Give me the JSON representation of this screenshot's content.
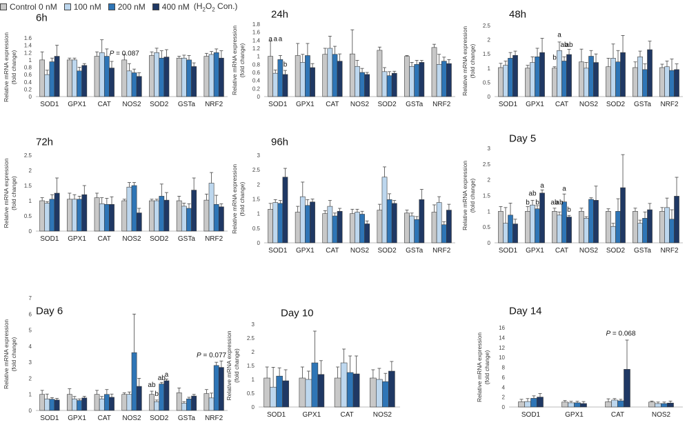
{
  "legend": {
    "items": [
      {
        "label": "Control 0 nM",
        "color": "#c8c8c8"
      },
      {
        "label": "100 nM",
        "color": "#bdd7ee"
      },
      {
        "label": "200 nM",
        "color": "#2e75b6"
      },
      {
        "label": "400 nM",
        "color": "#1f3864"
      }
    ],
    "note_prefix": "(H",
    "note_sub1": "2",
    "note_mid": "O",
    "note_sub2": "2",
    "note_suffix": " Con.)"
  },
  "chart_data": [
    {
      "type": "bar",
      "title": "6h",
      "ylabel": "Relative mRNA expression (fold change)",
      "ylim": [
        0,
        1.6
      ],
      "yticks": [
        0,
        0.2,
        0.4,
        0.6,
        0.8,
        1,
        1.2,
        1.4,
        1.6
      ],
      "categories": [
        "SOD1",
        "GPX1",
        "CAT",
        "NOS2",
        "SOD2",
        "GSTa",
        "NRF2"
      ],
      "series": [
        {
          "name": "Control 0 nM",
          "values": [
            1,
            1,
            1.1,
            1,
            1.12,
            1.05,
            1.1
          ]
        },
        {
          "name": "100 nM",
          "values": [
            0.6,
            1,
            1.2,
            0.7,
            1.2,
            1.05,
            1.15
          ]
        },
        {
          "name": "200 nM",
          "values": [
            0.95,
            0.7,
            1.1,
            0.65,
            1.05,
            1,
            1.2
          ]
        },
        {
          "name": "400 nM",
          "values": [
            1.1,
            0.85,
            0.78,
            0.55,
            1.08,
            0.82,
            1.05
          ]
        }
      ],
      "errors": [
        [
          0.22,
          0.05,
          0.12,
          0.15,
          0.1,
          0.05,
          0.08
        ],
        [
          0.12,
          0.05,
          0.35,
          0.2,
          0.12,
          0.08,
          0.08
        ],
        [
          0.1,
          0.1,
          0.2,
          0.1,
          0.2,
          0.12,
          0.1
        ],
        [
          0.3,
          0.05,
          0.18,
          0.1,
          0.2,
          0.1,
          0.2
        ]
      ],
      "annotations": [
        {
          "text": "P = 0.087",
          "category": "NOS2",
          "series": 0,
          "value": 1.12,
          "italic_prefix": "P"
        }
      ]
    },
    {
      "type": "bar",
      "title": "24h",
      "ylabel": "Relative mRNA expression (fold change)",
      "ylim": [
        0,
        1.8
      ],
      "yticks": [
        0,
        0.2,
        0.4,
        0.6,
        0.8,
        1,
        1.2,
        1.4,
        1.6,
        1.8
      ],
      "categories": [
        "SOD1",
        "GPX1",
        "CAT",
        "NOS2",
        "SOD2",
        "GSTa",
        "NRF2"
      ],
      "series": [
        {
          "name": "Control 0 nM",
          "values": [
            1,
            1.02,
            1.05,
            1.06,
            1.15,
            1,
            1.22
          ]
        },
        {
          "name": "100 nM",
          "values": [
            0.58,
            0.85,
            1.2,
            0.75,
            0.62,
            0.75,
            0.8
          ]
        },
        {
          "name": "200 nM",
          "values": [
            0.92,
            1.02,
            1.05,
            0.6,
            0.52,
            0.8,
            0.88
          ]
        },
        {
          "name": "400 nM",
          "values": [
            0.55,
            0.72,
            0.88,
            0.55,
            0.58,
            0.85,
            0.82
          ]
        }
      ],
      "errors": [
        [
          0.38,
          0.3,
          0.15,
          0.6,
          0.08,
          0.02,
          0.08
        ],
        [
          0.08,
          0.2,
          0.3,
          0.15,
          0.1,
          0.1,
          0.25
        ],
        [
          0.1,
          0.3,
          0.2,
          0.1,
          0.1,
          0.1,
          0.1
        ],
        [
          0.1,
          0.1,
          0.18,
          0.05,
          0.05,
          0.05,
          0.1
        ]
      ],
      "annotations": [
        {
          "text": "a",
          "category": "SOD1",
          "series": 0,
          "value": 1.38
        },
        {
          "text": "a",
          "category": "SOD1",
          "series": 1,
          "value": 1.38
        },
        {
          "text": "a",
          "category": "SOD1",
          "series": 2,
          "value": 1.38
        },
        {
          "text": "b",
          "category": "SOD1",
          "series": 3,
          "value": 0.75
        }
      ]
    },
    {
      "type": "bar",
      "title": "48h",
      "ylabel": "Relative mRNA expression (fold change)",
      "ylim": [
        0,
        2.5
      ],
      "yticks": [
        0,
        0.5,
        1,
        1.5,
        2,
        2.5
      ],
      "categories": [
        "SOD1",
        "GPX1",
        "CAT",
        "NOS2",
        "SOD2",
        "GSTa",
        "NRF2"
      ],
      "series": [
        {
          "name": "Control 0 nM",
          "values": [
            1.02,
            1,
            1,
            1.22,
            1.05,
            1.02,
            1.02
          ]
        },
        {
          "name": "100 nM",
          "values": [
            1.1,
            1.2,
            1.62,
            1,
            1.35,
            1.4,
            1.05
          ]
        },
        {
          "name": "200 nM",
          "values": [
            1.35,
            1.4,
            1.25,
            1.42,
            1.22,
            0.95,
            0.92
          ]
        },
        {
          "name": "400 nM",
          "values": [
            1.45,
            1.55,
            1.48,
            1.2,
            1.55,
            1.65,
            0.95
          ]
        }
      ],
      "errors": [
        [
          0.15,
          0.1,
          0.05,
          0.45,
          0.3,
          0.2,
          0.12
        ],
        [
          0.15,
          0.2,
          0.3,
          0.2,
          0.5,
          0.2,
          0.2
        ],
        [
          0.2,
          0.3,
          0.15,
          0.2,
          0.4,
          0.2,
          0.4
        ],
        [
          0.15,
          0.5,
          0.18,
          0.3,
          0.6,
          0.3,
          0.2
        ]
      ],
      "annotations": [
        {
          "text": "b",
          "category": "CAT",
          "series": 0,
          "value": 1.3
        },
        {
          "text": "a",
          "category": "CAT",
          "series": 1,
          "value": 2.1
        },
        {
          "text": "ab",
          "category": "CAT",
          "series": 2,
          "value": 1.75
        },
        {
          "text": "ab",
          "category": "CAT",
          "series": 3,
          "value": 1.75
        }
      ]
    },
    {
      "type": "bar",
      "title": "72h",
      "ylabel": "Relative mRNA expression (fold change)",
      "ylim": [
        0,
        2.5
      ],
      "yticks": [
        0,
        0.5,
        1,
        1.5,
        2,
        2.5
      ],
      "categories": [
        "SOD1",
        "GPX1",
        "CAT",
        "NOS2",
        "SOD2",
        "GSTa",
        "NRF2"
      ],
      "series": [
        {
          "name": "Control 0 nM",
          "values": [
            1,
            1.05,
            1.1,
            1,
            1,
            1,
            1.02
          ]
        },
        {
          "name": "100 nM",
          "values": [
            0.92,
            1.05,
            0.9,
            1.45,
            1,
            0.82,
            1.58
          ]
        },
        {
          "name": "200 nM",
          "values": [
            1.05,
            1.05,
            0.88,
            1.5,
            1.15,
            0.75,
            0.88
          ]
        },
        {
          "name": "400 nM",
          "values": [
            1.25,
            1.2,
            0.88,
            0.6,
            1.02,
            1.35,
            0.8
          ]
        }
      ],
      "errors": [
        [
          0.1,
          0.2,
          0.15,
          0.05,
          0.05,
          0.15,
          0.2
        ],
        [
          0.05,
          0.15,
          0.2,
          0.15,
          0.05,
          0.1,
          0.35
        ],
        [
          0.15,
          0.1,
          0.2,
          0.1,
          0.4,
          0.15,
          0.3
        ],
        [
          0.5,
          0.3,
          0.25,
          0.15,
          0.25,
          0.4,
          0.1
        ]
      ],
      "annotations": []
    },
    {
      "type": "bar",
      "title": "96h",
      "ylabel": "Relative mRNA expression (fold change)",
      "ylim": [
        0,
        3
      ],
      "yticks": [
        0,
        0.5,
        1,
        1.5,
        2,
        2.5,
        3
      ],
      "categories": [
        "SOD1",
        "GPX1",
        "CAT",
        "NOS2",
        "SOD2",
        "GSTa",
        "NRF2"
      ],
      "series": [
        {
          "name": "Control 0 nM",
          "values": [
            1.15,
            1.05,
            1,
            1,
            1.12,
            1.02,
            1.05
          ]
        },
        {
          "name": "100 nM",
          "values": [
            1.38,
            1.58,
            1.25,
            1.05,
            2.25,
            0.92,
            1.38
          ]
        },
        {
          "name": "200 nM",
          "values": [
            1.35,
            1.28,
            0.92,
            0.98,
            1.48,
            0.8,
            0.62
          ]
        },
        {
          "name": "400 nM",
          "values": [
            2.25,
            1.4,
            1.08,
            0.65,
            1.35,
            1.48,
            1.12
          ]
        }
      ],
      "errors": [
        [
          0.2,
          0.2,
          0.1,
          0.15,
          0.2,
          0.1,
          0.25
        ],
        [
          0.1,
          0.5,
          0.2,
          0.1,
          0.35,
          0.1,
          0.2
        ],
        [
          0.1,
          0.2,
          0.1,
          0.1,
          0.2,
          0.1,
          0.1
        ],
        [
          0.3,
          0.1,
          0.1,
          0.1,
          0.1,
          0.35,
          0.2
        ]
      ],
      "annotations": []
    },
    {
      "type": "bar",
      "title": "Day 5",
      "ylabel": "Relative mRNA expression (fold change)",
      "ylim": [
        0,
        3
      ],
      "yticks": [
        0,
        0.5,
        1,
        1.5,
        2,
        2.5,
        3
      ],
      "categories": [
        "SOD1",
        "GPX1",
        "CAT",
        "NOS2",
        "SOD2",
        "GSTa",
        "NRF2"
      ],
      "series": [
        {
          "name": "Control 0 nM",
          "values": [
            1,
            1,
            1,
            1,
            1,
            1,
            1
          ]
        },
        {
          "name": "100 nM",
          "values": [
            0.62,
            1.2,
            0.88,
            0.78,
            0.52,
            0.62,
            1.12
          ]
        },
        {
          "name": "200 nM",
          "values": [
            0.88,
            1.08,
            1.3,
            1.38,
            1,
            0.78,
            0.75
          ]
        },
        {
          "name": "400 nM",
          "values": [
            0.6,
            1.58,
            0.82,
            1.35,
            1.75,
            1.05,
            1.48
          ]
        }
      ],
      "errors": [
        [
          0.15,
          0.15,
          0.1,
          0.1,
          0.08,
          0.1,
          0.12
        ],
        [
          0.5,
          0.15,
          0.1,
          0.05,
          0.1,
          0.1,
          0.3
        ],
        [
          0.38,
          0.1,
          0.25,
          0.05,
          0.4,
          0.2,
          0.3
        ],
        [
          0.15,
          0.1,
          0.05,
          0.45,
          1.05,
          0.2,
          0.6
        ]
      ],
      "annotations": [
        {
          "text": "b",
          "category": "GPX1",
          "series": 0,
          "value": 1.22
        },
        {
          "text": "ab",
          "category": "GPX1",
          "series": 1,
          "value": 1.5
        },
        {
          "text": "b",
          "category": "GPX1",
          "series": 2,
          "value": 1.22
        },
        {
          "text": "a",
          "category": "GPX1",
          "series": 3,
          "value": 1.75
        },
        {
          "text": "ab",
          "category": "CAT",
          "series": 0,
          "value": 1.22
        },
        {
          "text": "ab",
          "category": "CAT",
          "series": 1,
          "value": 1.22
        },
        {
          "text": "a",
          "category": "CAT",
          "series": 2,
          "value": 1.65
        },
        {
          "text": "b",
          "category": "CAT",
          "series": 3,
          "value": 0.98
        }
      ]
    },
    {
      "type": "bar",
      "title": "Day 6",
      "ylabel": "Relative mRNA expression (fold change)",
      "ylim": [
        0,
        7
      ],
      "yticks": [
        0,
        1,
        2,
        3,
        4,
        5,
        6,
        7
      ],
      "categories": [
        "SOD1",
        "GPX1",
        "CAT",
        "NOS2",
        "SOD2",
        "GSTa",
        "NRF2"
      ],
      "series": [
        {
          "name": "Control 0 nM",
          "values": [
            1,
            1,
            1,
            1,
            1,
            1.1,
            1.05
          ]
        },
        {
          "name": "100 nM",
          "values": [
            0.72,
            0.72,
            0.72,
            1,
            0.55,
            0.45,
            0.78
          ]
        },
        {
          "name": "200 nM",
          "values": [
            0.7,
            0.62,
            1,
            3.6,
            1.65,
            0.72,
            2.8
          ]
        },
        {
          "name": "400 nM",
          "values": [
            0.65,
            0.78,
            0.82,
            1.5,
            1.85,
            0.9,
            2.68
          ]
        }
      ],
      "errors": [
        [
          0.25,
          0.35,
          0.25,
          0.1,
          0.2,
          0.3,
          0.25
        ],
        [
          0.3,
          0.15,
          0.15,
          0.15,
          0.1,
          0.1,
          0.3
        ],
        [
          0.1,
          0.1,
          0.3,
          2.4,
          0.1,
          0.1,
          0.2
        ],
        [
          0.1,
          0.1,
          0.2,
          0.5,
          0.1,
          0.1,
          0.4
        ]
      ],
      "annotations": [
        {
          "text": "ab",
          "category": "SOD2",
          "series": 0,
          "value": 1.45
        },
        {
          "text": "b",
          "category": "SOD2",
          "series": 1,
          "value": 0.9
        },
        {
          "text": "ab",
          "category": "SOD2",
          "series": 2,
          "value": 1.9
        },
        {
          "text": "a",
          "category": "SOD2",
          "series": 3,
          "value": 2.1
        },
        {
          "text": "P = 0.077",
          "category": "NRF2",
          "series": 1,
          "value": 3.3,
          "italic_prefix": "P"
        }
      ]
    },
    {
      "type": "bar",
      "title": "Day 10",
      "ylabel": "Relative mRNA expression (fold change)",
      "ylim": [
        0,
        3
      ],
      "yticks": [
        0,
        0.5,
        1,
        1.5,
        2,
        2.5,
        3
      ],
      "categories": [
        "SOD1",
        "GPX1",
        "CAT",
        "NOS2"
      ],
      "series": [
        {
          "name": "Control 0 nM",
          "values": [
            1.05,
            1.05,
            1.05,
            1.05
          ]
        },
        {
          "name": "100 nM",
          "values": [
            0.72,
            1,
            1.6,
            1
          ]
        },
        {
          "name": "200 nM",
          "values": [
            1.12,
            1.6,
            1.25,
            0.92
          ]
        },
        {
          "name": "400 nM",
          "values": [
            0.95,
            1.18,
            1.2,
            1.3
          ]
        }
      ],
      "errors": [
        [
          0.4,
          0.4,
          0.4,
          0.3
        ],
        [
          0.72,
          0.3,
          0.5,
          0.4
        ],
        [
          0.3,
          1.15,
          0.6,
          0.3
        ],
        [
          0.4,
          0.5,
          0.65,
          0.35
        ]
      ],
      "annotations": []
    },
    {
      "type": "bar",
      "title": "Day 14",
      "ylabel": "Relative mRNA expression (fold change)",
      "ylim": [
        0,
        16
      ],
      "yticks": [
        0,
        2,
        4,
        6,
        8,
        10,
        12,
        14,
        16
      ],
      "categories": [
        "SOD1",
        "GPX1",
        "CAT",
        "NOS2"
      ],
      "series": [
        {
          "name": "Control 0 nM",
          "values": [
            1.05,
            1,
            1.05,
            1
          ]
        },
        {
          "name": "100 nM",
          "values": [
            1.1,
            0.85,
            1.4,
            0.7
          ]
        },
        {
          "name": "200 nM",
          "values": [
            1.75,
            0.85,
            1.25,
            0.7
          ]
        },
        {
          "name": "400 nM",
          "values": [
            2,
            0.7,
            7.6,
            0.8
          ]
        }
      ],
      "errors": [
        [
          0.5,
          0.3,
          0.6,
          0.2
        ],
        [
          0.6,
          0.3,
          0.3,
          0.3
        ],
        [
          0.5,
          0.3,
          0.3,
          0.3
        ],
        [
          0.7,
          0.4,
          5.9,
          0.4
        ]
      ],
      "annotations": [
        {
          "text": "P = 0.068",
          "category": "CAT",
          "series": 2,
          "value": 14.4,
          "italic_prefix": "P"
        }
      ]
    }
  ]
}
